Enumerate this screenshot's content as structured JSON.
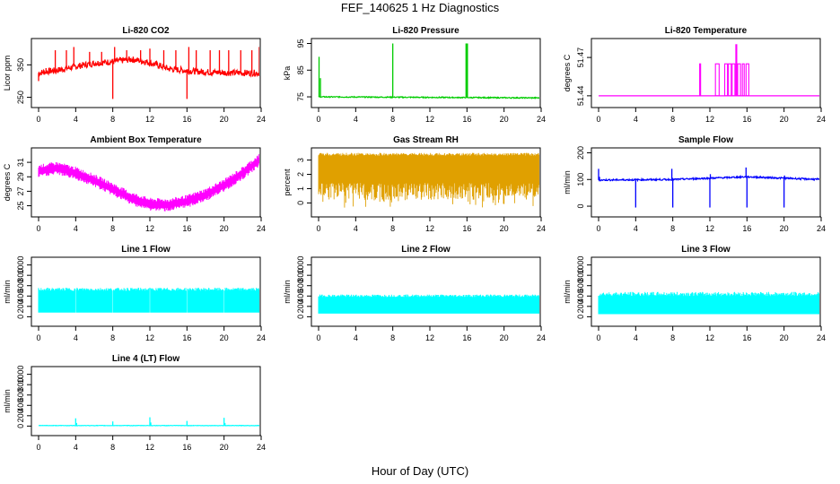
{
  "figure": {
    "title": "FEF_140625  1 Hz Diagnostics",
    "xlabel": "Hour of Day (UTC)"
  },
  "chart_data": [
    {
      "id": "co2",
      "type": "line",
      "title": "Li-820 CO2",
      "ylabel": "Licor ppm",
      "xlim": [
        0,
        24
      ],
      "xticks": [
        0,
        4,
        8,
        12,
        16,
        20,
        24
      ],
      "ylim": [
        235,
        420
      ],
      "yticks": [
        250,
        350
      ],
      "yticklabels": [
        "250",
        "350"
      ],
      "color": "#ff0000",
      "style": "noisy",
      "noise": 10,
      "baseline": [
        [
          0,
          325
        ],
        [
          1,
          330
        ],
        [
          2,
          333
        ],
        [
          4,
          345
        ],
        [
          6,
          355
        ],
        [
          8,
          360
        ],
        [
          10,
          367
        ],
        [
          11.5,
          360
        ],
        [
          13,
          348
        ],
        [
          14,
          338
        ],
        [
          16,
          332
        ],
        [
          18,
          328
        ],
        [
          20,
          326
        ],
        [
          22,
          325
        ],
        [
          24,
          325
        ]
      ],
      "spikes": [
        [
          0,
          300
        ],
        [
          0.8,
          340
        ],
        [
          1.8,
          395
        ],
        [
          3,
          395
        ],
        [
          3.8,
          405
        ],
        [
          5.5,
          390
        ],
        [
          6.8,
          390
        ],
        [
          8,
          245
        ],
        [
          8.2,
          405
        ],
        [
          9.5,
          395
        ],
        [
          11,
          395
        ],
        [
          12,
          400
        ],
        [
          13.5,
          395
        ],
        [
          14.8,
          395
        ],
        [
          16,
          245
        ],
        [
          16.2,
          405
        ],
        [
          17,
          395
        ],
        [
          18.5,
          395
        ],
        [
          19.5,
          395
        ],
        [
          20.5,
          395
        ],
        [
          21.8,
          395
        ],
        [
          23,
          395
        ],
        [
          23.8,
          405
        ],
        [
          24,
          300
        ]
      ]
    },
    {
      "id": "pressure",
      "type": "line",
      "title": "Li-820 Pressure",
      "ylabel": "kPa",
      "xlim": [
        0,
        24
      ],
      "xticks": [
        0,
        4,
        8,
        12,
        16,
        20,
        24
      ],
      "ylim": [
        73,
        95.5
      ],
      "yticks": [
        75,
        85,
        95
      ],
      "yticklabels": [
        "75",
        "85",
        "95"
      ],
      "color": "#00cc00",
      "style": "noisy",
      "noise": 0.2,
      "baseline": [
        [
          0,
          75
        ],
        [
          24,
          74.6
        ]
      ],
      "spikes": [
        [
          0.05,
          90
        ],
        [
          0.2,
          82
        ],
        [
          8,
          95
        ],
        [
          15.9,
          95
        ],
        [
          16,
          95
        ],
        [
          16.05,
          95
        ],
        [
          23.9,
          94
        ],
        [
          24,
          94.5
        ]
      ]
    },
    {
      "id": "licor_temp",
      "type": "line",
      "title": "Li-820 Temperature",
      "ylabel": "degrees C",
      "xlim": [
        0,
        24
      ],
      "xticks": [
        0,
        4,
        8,
        12,
        16,
        20,
        24
      ],
      "ylim": [
        51.435,
        51.482
      ],
      "yticks": [
        51.44,
        51.47
      ],
      "yticklabels": [
        "51.44",
        "51.47"
      ],
      "color": "#ff00ff",
      "style": "step",
      "baseline": [
        [
          0,
          51.44
        ],
        [
          24,
          51.44
        ]
      ],
      "pulses": [
        [
          10.9,
          11.0,
          51.465
        ],
        [
          12.6,
          13.0,
          51.465
        ],
        [
          13.6,
          13.9,
          51.465
        ],
        [
          14.0,
          14.3,
          51.465
        ],
        [
          14.4,
          14.7,
          51.465
        ],
        [
          14.8,
          14.9,
          51.48
        ],
        [
          15.0,
          15.3,
          51.465
        ],
        [
          15.5,
          15.7,
          51.465
        ],
        [
          15.9,
          16.2,
          51.465
        ]
      ]
    },
    {
      "id": "ambient_temp",
      "type": "line",
      "title": "Ambient Box Temperature",
      "ylabel": "degrees C",
      "xlim": [
        0,
        24
      ],
      "xticks": [
        0,
        4,
        8,
        12,
        16,
        20,
        24
      ],
      "ylim": [
        24.2,
        32.5
      ],
      "yticks": [
        25,
        27,
        29,
        31
      ],
      "yticklabels": [
        "25",
        "27",
        "29",
        "31"
      ],
      "color": "#ff00ff",
      "style": "band",
      "bandwidth": 1.3,
      "baseline": [
        [
          0,
          29.8
        ],
        [
          2,
          30.2
        ],
        [
          4,
          29.5
        ],
        [
          6,
          28.5
        ],
        [
          8,
          27.3
        ],
        [
          10,
          26
        ],
        [
          12,
          25.2
        ],
        [
          14,
          25.1
        ],
        [
          16,
          25.6
        ],
        [
          18,
          26.5
        ],
        [
          20,
          27.8
        ],
        [
          22,
          29.5
        ],
        [
          24,
          31.5
        ]
      ]
    },
    {
      "id": "rh",
      "type": "line",
      "title": "Gas Stream RH",
      "ylabel": "percent",
      "xlim": [
        0,
        24
      ],
      "xticks": [
        0,
        4,
        8,
        12,
        16,
        20,
        24
      ],
      "ylim": [
        -0.6,
        3.6
      ],
      "yticks": [
        0,
        1,
        2,
        3
      ],
      "yticklabels": [
        "0",
        "1",
        "2",
        "3"
      ],
      "color": "#e0a000",
      "style": "hatch",
      "top": [
        [
          0,
          3.4
        ],
        [
          24,
          3.4
        ]
      ],
      "bottom": [
        [
          0,
          1.4
        ],
        [
          24,
          1.4
        ]
      ],
      "dips": -0.4
    },
    {
      "id": "sample_flow",
      "type": "line",
      "title": "Sample Flow",
      "ylabel": "ml/min",
      "xlim": [
        0,
        24
      ],
      "xticks": [
        0,
        4,
        8,
        12,
        16,
        20,
        24
      ],
      "ylim": [
        -20,
        205
      ],
      "yticks": [
        0,
        100,
        200
      ],
      "yticklabels": [
        "0",
        "100",
        "200"
      ],
      "color": "#0000ff",
      "style": "noisy",
      "noise": 3,
      "baseline": [
        [
          0,
          98
        ],
        [
          8,
          100
        ],
        [
          12,
          105
        ],
        [
          16,
          110
        ],
        [
          24,
          100
        ]
      ],
      "spikes": [
        [
          0,
          140
        ],
        [
          0.1,
          110
        ],
        [
          4,
          -5
        ],
        [
          7.9,
          140
        ],
        [
          8,
          -5
        ],
        [
          12,
          -5
        ],
        [
          12.05,
          120
        ],
        [
          15.9,
          145
        ],
        [
          16,
          -5
        ],
        [
          20,
          -5
        ],
        [
          20.05,
          115
        ],
        [
          24,
          -5
        ]
      ]
    },
    {
      "id": "line1",
      "type": "line",
      "title": "Line 1 Flow",
      "ylabel": "ml/min",
      "xlim": [
        0,
        24
      ],
      "xticks": [
        0,
        4,
        8,
        12,
        16,
        20,
        24
      ],
      "ylim": [
        -80,
        1080
      ],
      "yticks": [
        0,
        200,
        400,
        600,
        800,
        1000
      ],
      "yticklabels": [
        "0",
        "200",
        "400",
        "600",
        "800",
        "1000"
      ],
      "color": "#00ffff",
      "style": "block",
      "top": [
        [
          0,
          500
        ],
        [
          24,
          500
        ]
      ],
      "bottom": [
        [
          0,
          80
        ],
        [
          24,
          80
        ]
      ],
      "tophi": 560,
      "gaps": [
        4,
        8,
        12,
        16,
        20
      ]
    },
    {
      "id": "line2",
      "type": "line",
      "title": "Line 2 Flow",
      "ylabel": "ml/min",
      "xlim": [
        0,
        24
      ],
      "xticks": [
        0,
        4,
        8,
        12,
        16,
        20,
        24
      ],
      "ylim": [
        -80,
        1080
      ],
      "yticks": [
        0,
        200,
        400,
        600,
        800,
        1000
      ],
      "yticklabels": [
        "0",
        "200",
        "400",
        "600",
        "800",
        "1000"
      ],
      "color": "#00ffff",
      "style": "block",
      "top": [
        [
          0,
          380
        ],
        [
          24,
          380
        ]
      ],
      "bottom": [
        [
          0,
          60
        ],
        [
          24,
          60
        ]
      ],
      "tophi": 430,
      "gaps": []
    },
    {
      "id": "line3",
      "type": "line",
      "title": "Line 3 Flow",
      "ylabel": "ml/min",
      "xlim": [
        0,
        24
      ],
      "xticks": [
        0,
        4,
        8,
        12,
        16,
        20,
        24
      ],
      "ylim": [
        -80,
        1080
      ],
      "yticks": [
        0,
        200,
        400,
        600,
        800,
        1000
      ],
      "yticklabels": [
        "0",
        "200",
        "400",
        "600",
        "800",
        "1000"
      ],
      "color": "#00ffff",
      "style": "block",
      "top": [
        [
          0,
          400
        ],
        [
          24,
          400
        ]
      ],
      "bottom": [
        [
          0,
          50
        ],
        [
          24,
          50
        ]
      ],
      "tophi": 480,
      "gaps": []
    },
    {
      "id": "line4",
      "type": "line",
      "title": "Line 4 (LT) Flow",
      "ylabel": "ml/min",
      "xlim": [
        0,
        24
      ],
      "xticks": [
        0,
        4,
        8,
        12,
        16,
        20,
        24
      ],
      "ylim": [
        -80,
        1080
      ],
      "yticks": [
        0,
        200,
        400,
        600,
        800,
        1000
      ],
      "yticklabels": [
        "0",
        "200",
        "400",
        "600",
        "800",
        "1000"
      ],
      "color": "#00ffff",
      "style": "noisy",
      "noise": 4,
      "baseline": [
        [
          0,
          10
        ],
        [
          24,
          10
        ]
      ],
      "spikes": [
        [
          4,
          150
        ],
        [
          4.1,
          60
        ],
        [
          8,
          90
        ],
        [
          12,
          170
        ],
        [
          12.1,
          70
        ],
        [
          16,
          100
        ],
        [
          20,
          160
        ],
        [
          20.1,
          60
        ],
        [
          24,
          110
        ]
      ]
    }
  ]
}
